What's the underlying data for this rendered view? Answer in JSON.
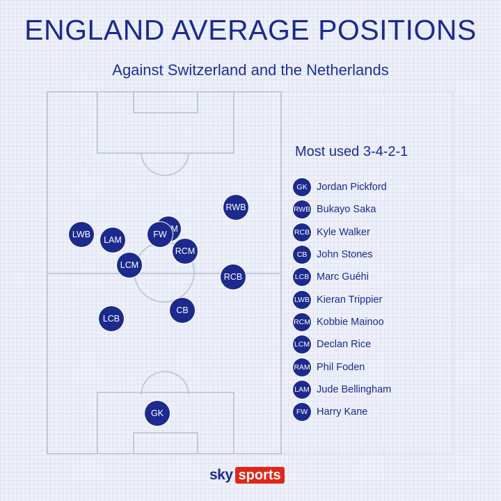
{
  "header": {
    "title": "ENGLAND AVERAGE POSITIONS",
    "subtitle": "Against Switzerland and the Netherlands"
  },
  "panel": {
    "formation": "Most used 3-4-2-1"
  },
  "pitch_tokens": [
    {
      "code": "RWB"
    },
    {
      "code": "RAM"
    },
    {
      "code": "LWB"
    },
    {
      "code": "LAM"
    },
    {
      "code": "FW"
    },
    {
      "code": "RCM"
    },
    {
      "code": "LCM"
    },
    {
      "code": "RCB"
    },
    {
      "code": "CB"
    },
    {
      "code": "LCB"
    },
    {
      "code": "GK"
    }
  ],
  "legend": [
    {
      "code": "GK",
      "name": "Jordan Pickford"
    },
    {
      "code": "RWB",
      "name": "Bukayo Saka"
    },
    {
      "code": "RCB",
      "name": "Kyle Walker"
    },
    {
      "code": "CB",
      "name": "John Stones"
    },
    {
      "code": "LCB",
      "name": "Marc Guéhi"
    },
    {
      "code": "LWB",
      "name": "Kieran Trippier"
    },
    {
      "code": "RCM",
      "name": "Kobbie Mainoo"
    },
    {
      "code": "LCM",
      "name": "Declan Rice"
    },
    {
      "code": "RAM",
      "name": "Phil Foden"
    },
    {
      "code": "LAM",
      "name": "Jude Bellingham"
    },
    {
      "code": "FW",
      "name": "Harry Kane"
    }
  ],
  "branding": {
    "sky": "sky",
    "sports": "sports"
  },
  "colors": {
    "primary": "#1c2a8e",
    "brand_red": "#e1251b",
    "background": "#eef1fa"
  }
}
